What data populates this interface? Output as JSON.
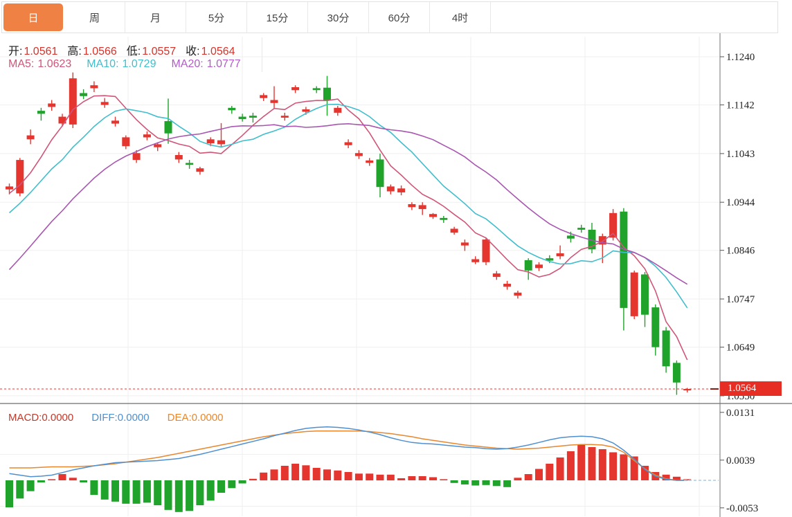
{
  "tabs": {
    "items": [
      {
        "label": "日",
        "active": true
      },
      {
        "label": "周",
        "active": false
      },
      {
        "label": "月",
        "active": false
      },
      {
        "label": "5分",
        "active": false
      },
      {
        "label": "15分",
        "active": false
      },
      {
        "label": "30分",
        "active": false
      },
      {
        "label": "60分",
        "active": false
      },
      {
        "label": "4时",
        "active": false
      }
    ]
  },
  "legend": {
    "ohlc": [
      {
        "label": "开:",
        "value": "1.0561"
      },
      {
        "label": "高:",
        "value": "1.0566"
      },
      {
        "label": "低:",
        "value": "1.0557"
      },
      {
        "label": "收:",
        "value": "1.0564"
      }
    ],
    "ma": [
      {
        "label": "MA5:",
        "value": "1.0623"
      },
      {
        "label": "MA10:",
        "value": "1.0729"
      },
      {
        "label": "MA20:",
        "value": "1.0777"
      }
    ]
  },
  "macd_legend": [
    {
      "label": "MACD:",
      "value": "0.0000"
    },
    {
      "label": "DIFF:",
      "value": "0.0000"
    },
    {
      "label": "DEA:",
      "value": "0.0000"
    }
  ],
  "axis": {
    "price_ticks": [
      "1.1240",
      "1.1142",
      "1.1043",
      "1.0944",
      "1.0846",
      "1.0747",
      "1.0649",
      "1.0550"
    ],
    "macd_ticks": [
      "0.0131",
      "0.0039",
      "-0.0053"
    ],
    "current_price": "1.0564"
  },
  "colors": {
    "up": "#e5352f",
    "down": "#1fa32b",
    "ohlc_value": "#d3332b",
    "ma5": "#d05578",
    "ma10": "#3fbecd",
    "ma20": "#a856b0",
    "ma20_text": "#b25cc8",
    "macd_label": "#c0392b",
    "diff": "#4e8fd0",
    "dea": "#e8872e",
    "tab_active_bg": "#ef8144",
    "price_tag_bg": "#e62e24",
    "grid": "#efefef",
    "axis_line": "#707070",
    "panel_divider": "#4a4a4a",
    "dotted_price_line": "#e5352f",
    "zero_tail": "#aacbe2"
  },
  "chart_data": {
    "type": "candlestick+macd",
    "title": "",
    "legend_position": "top-left",
    "grid": true,
    "price_axis_range": [
      1.055,
      1.124
    ],
    "macd_axis_range": [
      -0.0053,
      0.0131
    ],
    "current_price": 1.0564,
    "ohlc_display": {
      "open": 1.0561,
      "high": 1.0566,
      "low": 1.0557,
      "close": 1.0564
    },
    "ma_display": {
      "ma5": 1.0623,
      "ma10": 1.0729,
      "ma20": 1.0777
    },
    "macd_display": {
      "macd": 0.0,
      "diff": 0.0,
      "dea": 0.0
    },
    "ma_periods": [
      5,
      10,
      20
    ],
    "prehistory_closes": [
      1.053,
      1.056,
      1.059,
      1.062,
      1.065,
      1.068,
      1.071,
      1.0737,
      1.0763,
      1.0788,
      1.0812,
      1.0836,
      1.086,
      1.0884,
      1.0906,
      1.0928,
      1.0944,
      1.0956,
      1.0964,
      1.097
    ],
    "candles_ohlc": [
      [
        1.097,
        1.0982,
        1.096,
        1.0976
      ],
      [
        1.0962,
        1.1034,
        1.0956,
        1.103
      ],
      [
        1.1072,
        1.1092,
        1.1062,
        1.108
      ],
      [
        1.113,
        1.1136,
        1.111,
        1.1124
      ],
      [
        1.1138,
        1.1152,
        1.113,
        1.1145
      ],
      [
        1.1104,
        1.1124,
        1.1098,
        1.1118
      ],
      [
        1.1102,
        1.1208,
        1.1095,
        1.1196
      ],
      [
        1.1166,
        1.1174,
        1.1154,
        1.116
      ],
      [
        1.1176,
        1.119,
        1.1168,
        1.1182
      ],
      [
        1.1142,
        1.1156,
        1.1136,
        1.1148
      ],
      [
        1.1104,
        1.1118,
        1.1098,
        1.111
      ],
      [
        1.1058,
        1.108,
        1.1052,
        1.1076
      ],
      [
        1.103,
        1.105,
        1.1024,
        1.1044
      ],
      [
        1.1076,
        1.1088,
        1.107,
        1.1082
      ],
      [
        1.1056,
        1.1066,
        1.1048,
        1.1062
      ],
      [
        1.1109,
        1.1155,
        1.1063,
        1.1084
      ],
      [
        1.1031,
        1.1046,
        1.1024,
        1.104
      ],
      [
        1.1024,
        1.103,
        1.1012,
        1.102
      ],
      [
        1.1006,
        1.1016,
        1.1,
        1.1013
      ],
      [
        1.1064,
        1.1076,
        1.1058,
        1.1072
      ],
      [
        1.1062,
        1.1105,
        1.1056,
        1.107
      ],
      [
        1.1136,
        1.114,
        1.1124,
        1.1131
      ],
      [
        1.1118,
        1.1124,
        1.1108,
        1.1113
      ],
      [
        1.112,
        1.1126,
        1.1106,
        1.1116
      ],
      [
        1.1156,
        1.1166,
        1.115,
        1.1162
      ],
      [
        1.1146,
        1.118,
        1.1134,
        1.1152
      ],
      [
        1.1116,
        1.1126,
        1.111,
        1.112
      ],
      [
        1.1172,
        1.1182,
        1.1166,
        1.1178
      ],
      [
        1.1128,
        1.1138,
        1.1122,
        1.1133
      ],
      [
        1.1176,
        1.118,
        1.1166,
        1.1172
      ],
      [
        1.1177,
        1.1201,
        1.112,
        1.1151
      ],
      [
        1.1126,
        1.114,
        1.112,
        1.1136
      ],
      [
        1.106,
        1.1072,
        1.1054,
        1.1066
      ],
      [
        1.1038,
        1.105,
        1.1032,
        1.1044
      ],
      [
        1.1024,
        1.1034,
        1.1018,
        1.1029
      ],
      [
        1.1031,
        1.1043,
        1.0954,
        1.0975
      ],
      [
        1.0966,
        1.098,
        1.096,
        1.0976
      ],
      [
        1.0964,
        1.0978,
        1.0958,
        1.0972
      ],
      [
        1.0934,
        1.0944,
        1.0928,
        1.094
      ],
      [
        1.093,
        1.0944,
        1.0918,
        1.0938
      ],
      [
        1.0914,
        1.0922,
        1.091,
        1.092
      ],
      [
        1.0912,
        1.0916,
        1.0902,
        1.0908
      ],
      [
        1.0882,
        1.0894,
        1.0878,
        1.089
      ],
      [
        1.0856,
        1.0868,
        1.0845,
        1.0862
      ],
      [
        1.0822,
        1.0834,
        1.0818,
        1.0828
      ],
      [
        1.0822,
        1.0872,
        1.0816,
        1.0868
      ],
      [
        1.0792,
        1.0804,
        1.0786,
        1.0799
      ],
      [
        1.0772,
        1.0784,
        1.0766,
        1.0778
      ],
      [
        1.0754,
        1.0764,
        1.0748,
        1.076
      ],
      [
        1.0826,
        1.083,
        1.0786,
        1.0805
      ],
      [
        1.081,
        1.0822,
        1.0804,
        1.0817
      ],
      [
        1.083,
        1.0836,
        1.082,
        1.0825
      ],
      [
        1.0834,
        1.0856,
        1.0828,
        1.084
      ],
      [
        1.0876,
        1.0884,
        1.0862,
        1.087
      ],
      [
        1.0892,
        1.0898,
        1.0882,
        1.0888
      ],
      [
        1.0888,
        1.0902,
        1.084,
        1.0848
      ],
      [
        1.0858,
        1.088,
        1.082,
        1.0875
      ],
      [
        1.0872,
        1.093,
        1.0866,
        1.0922
      ],
      [
        1.0925,
        1.0932,
        1.0683,
        1.0729
      ],
      [
        1.0712,
        1.0805,
        1.0706,
        1.0801
      ],
      [
        1.0797,
        1.0802,
        1.069,
        1.0715
      ],
      [
        1.073,
        1.0736,
        1.0632,
        1.0649
      ],
      [
        1.0683,
        1.069,
        1.0597,
        1.061
      ],
      [
        1.0617,
        1.0622,
        1.0552,
        1.0577
      ],
      [
        1.0561,
        1.0566,
        1.0557,
        1.0564
      ]
    ],
    "macd": {
      "histogram": [
        -0.0052,
        -0.0035,
        -0.0021,
        -0.0004,
        0.0002,
        0.0012,
        0.0005,
        -0.0004,
        -0.0028,
        -0.0037,
        -0.0041,
        -0.0045,
        -0.0045,
        -0.0043,
        -0.0048,
        -0.0057,
        -0.0061,
        -0.0059,
        -0.0048,
        -0.0039,
        -0.0024,
        -0.0015,
        -0.0006,
        0.0003,
        0.0015,
        0.0021,
        0.0028,
        0.0032,
        0.0029,
        0.0024,
        0.0021,
        0.0019,
        0.0016,
        0.0013,
        0.0013,
        0.0011,
        0.0011,
        0.0004,
        0.0008,
        0.0008,
        0.0006,
        0.0001,
        -0.0005,
        -0.0008,
        -0.001,
        -0.0009,
        -0.0011,
        -0.0013,
        0.0005,
        0.0012,
        0.0022,
        0.0032,
        0.0044,
        0.0056,
        0.0069,
        0.0064,
        0.006,
        0.0054,
        0.005,
        0.0046,
        0.0028,
        0.0016,
        0.0011,
        0.0007,
        0.0002
      ],
      "diff": [
        0.0013,
        0.001,
        0.0007,
        0.0008,
        0.001,
        0.0015,
        0.002,
        0.0024,
        0.0028,
        0.0031,
        0.0034,
        0.0035,
        0.0036,
        0.0037,
        0.0038,
        0.004,
        0.0042,
        0.0046,
        0.005,
        0.0055,
        0.006,
        0.0065,
        0.007,
        0.0075,
        0.008,
        0.0086,
        0.0091,
        0.0096,
        0.01,
        0.0102,
        0.0103,
        0.0102,
        0.01,
        0.0097,
        0.0093,
        0.0088,
        0.0082,
        0.0077,
        0.0073,
        0.0071,
        0.007,
        0.0068,
        0.0066,
        0.0064,
        0.0063,
        0.0061,
        0.006,
        0.0061,
        0.0064,
        0.0068,
        0.0073,
        0.0078,
        0.0082,
        0.0084,
        0.0085,
        0.0084,
        0.008,
        0.0072,
        0.0058,
        0.0041,
        0.0021,
        0.0008,
        0.0002,
        0.0,
        0.0
      ],
      "dea": [
        0.0024,
        0.0024,
        0.0024,
        0.0025,
        0.0026,
        0.0026,
        0.0026,
        0.0027,
        0.0028,
        0.003,
        0.0032,
        0.0035,
        0.0038,
        0.0041,
        0.0044,
        0.0048,
        0.0052,
        0.0056,
        0.006,
        0.0064,
        0.0068,
        0.0072,
        0.0076,
        0.008,
        0.0084,
        0.0087,
        0.009,
        0.0092,
        0.0094,
        0.0095,
        0.0095,
        0.0095,
        0.0095,
        0.0095,
        0.0094,
        0.0092,
        0.009,
        0.0087,
        0.0084,
        0.008,
        0.0077,
        0.0074,
        0.0071,
        0.0068,
        0.0066,
        0.0064,
        0.0062,
        0.0061,
        0.006,
        0.0061,
        0.0062,
        0.0064,
        0.0066,
        0.0068,
        0.0069,
        0.0069,
        0.0068,
        0.0064,
        0.0054,
        0.0038,
        0.0022,
        0.001,
        0.0003,
        0.0,
        0.0
      ]
    }
  }
}
